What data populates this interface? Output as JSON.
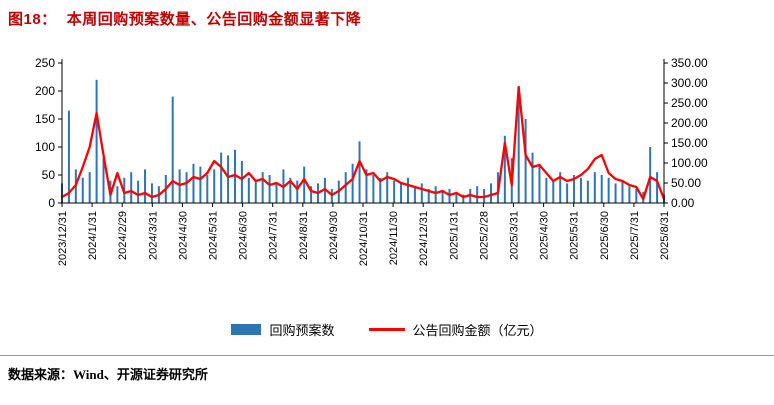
{
  "header": {
    "figure_label": "图18：",
    "title": "本周回购预案数量、公告回购金额显著下降"
  },
  "footer": {
    "source": "数据来源：Wind、开源证券研究所"
  },
  "colors": {
    "title_red": "#c00000",
    "bar_blue": "#2E75B6",
    "line_red": "#FF0000",
    "axis_black": "#000000"
  },
  "chart_data": {
    "type": "bar+line combo",
    "title": "本周回购预案数量、公告回购金额显著下降",
    "grid": false,
    "legend_position": "bottom",
    "x_tick_labels": [
      "2023/12/31",
      "2024/1/31",
      "2024/2/29",
      "2024/3/31",
      "2024/4/30",
      "2024/5/31",
      "2024/6/30",
      "2024/7/31",
      "2024/8/31",
      "2024/9/30",
      "2024/10/31",
      "2024/11/30",
      "2024/12/31",
      "2025/1/31",
      "2025/2/28",
      "2025/3/31",
      "2025/4/30",
      "2025/5/31",
      "2025/6/30",
      "2025/7/31",
      "2025/8/31"
    ],
    "left_axis": {
      "min": 0,
      "max": 250,
      "ticks": [
        0,
        50,
        100,
        150,
        200,
        250
      ]
    },
    "right_axis": {
      "min": 0,
      "max": 350,
      "ticks": [
        0,
        50,
        100,
        150,
        200,
        250,
        300,
        350
      ],
      "decimals": 2
    },
    "series": [
      {
        "name": "回购预案数",
        "type": "bar",
        "axis": "left",
        "color": "#2E75B6",
        "values": [
          35,
          165,
          60,
          45,
          55,
          220,
          80,
          40,
          30,
          45,
          55,
          40,
          60,
          35,
          30,
          50,
          190,
          60,
          55,
          70,
          65,
          50,
          60,
          90,
          85,
          95,
          75,
          45,
          40,
          55,
          50,
          35,
          60,
          45,
          40,
          65,
          30,
          35,
          45,
          25,
          40,
          55,
          70,
          110,
          60,
          50,
          45,
          55,
          40,
          35,
          45,
          30,
          35,
          25,
          30,
          20,
          25,
          20,
          15,
          25,
          30,
          25,
          35,
          55,
          120,
          80,
          185,
          150,
          90,
          70,
          45,
          40,
          55,
          35,
          50,
          45,
          40,
          55,
          50,
          45,
          35,
          40,
          30,
          25,
          20,
          100,
          55,
          15
        ]
      },
      {
        "name": "公告回购金额（亿元）",
        "type": "line",
        "axis": "right",
        "color": "#FF0000",
        "values": [
          15,
          25,
          45,
          90,
          140,
          225,
          120,
          20,
          75,
          25,
          30,
          20,
          25,
          15,
          20,
          35,
          55,
          45,
          50,
          65,
          60,
          75,
          105,
          90,
          65,
          70,
          60,
          75,
          55,
          60,
          45,
          50,
          40,
          55,
          35,
          60,
          30,
          25,
          35,
          20,
          30,
          45,
          60,
          105,
          70,
          75,
          55,
          65,
          60,
          50,
          45,
          40,
          35,
          30,
          25,
          30,
          20,
          25,
          15,
          20,
          15,
          15,
          20,
          25,
          150,
          45,
          290,
          120,
          90,
          95,
          75,
          55,
          65,
          55,
          60,
          70,
          85,
          110,
          120,
          75,
          60,
          55,
          45,
          40,
          10,
          65,
          55,
          10
        ]
      }
    ]
  }
}
